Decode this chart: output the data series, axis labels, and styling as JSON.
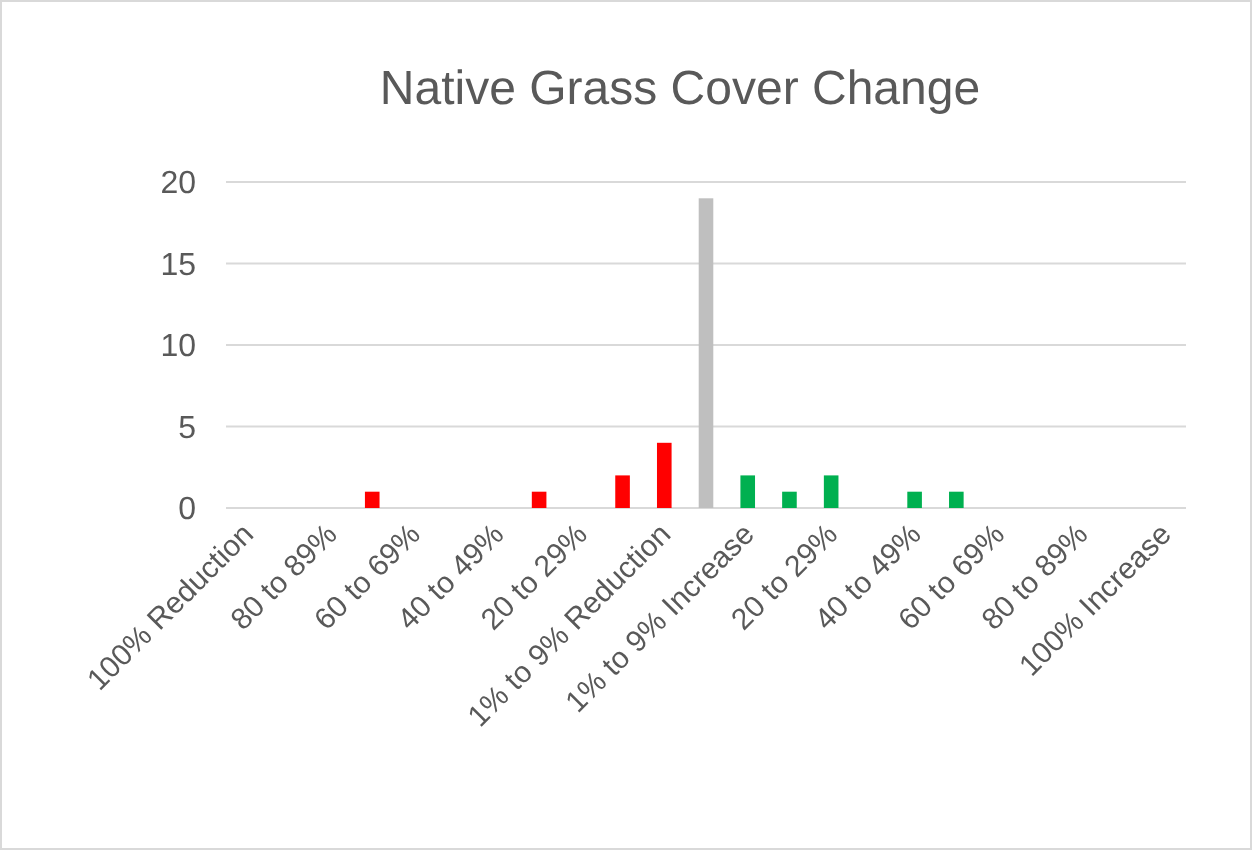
{
  "chart_data": {
    "type": "bar",
    "title": "Native Grass Cover Change",
    "categories": [
      "100% Reduction",
      null,
      "80 to 89%",
      null,
      "60 to 69%",
      null,
      "40 to 49%",
      null,
      "20 to 29%",
      null,
      "1% to 9% Reduction",
      null,
      "1% to 9% Increase",
      null,
      "20 to 29%",
      null,
      "40 to 49%",
      null,
      "60 to 69%",
      null,
      "80 to 89%",
      null,
      "100% Increase"
    ],
    "values": [
      0,
      0,
      0,
      1,
      0,
      0,
      0,
      1,
      0,
      2,
      4,
      19,
      2,
      1,
      2,
      0,
      1,
      1,
      0,
      0,
      0,
      0,
      0
    ],
    "colors": [
      "#ff0000",
      "#ff0000",
      "#ff0000",
      "#ff0000",
      "#ff0000",
      "#ff0000",
      "#ff0000",
      "#ff0000",
      "#ff0000",
      "#ff0000",
      "#ff0000",
      "#bfbfbf",
      "#00b050",
      "#00b050",
      "#00b050",
      "#00b050",
      "#00b050",
      "#00b050",
      "#00b050",
      "#00b050",
      "#00b050",
      "#00b050",
      "#00b050"
    ],
    "ylim": [
      0,
      20
    ],
    "yticks": [
      0,
      5,
      10,
      15,
      20
    ],
    "grid": "y"
  }
}
